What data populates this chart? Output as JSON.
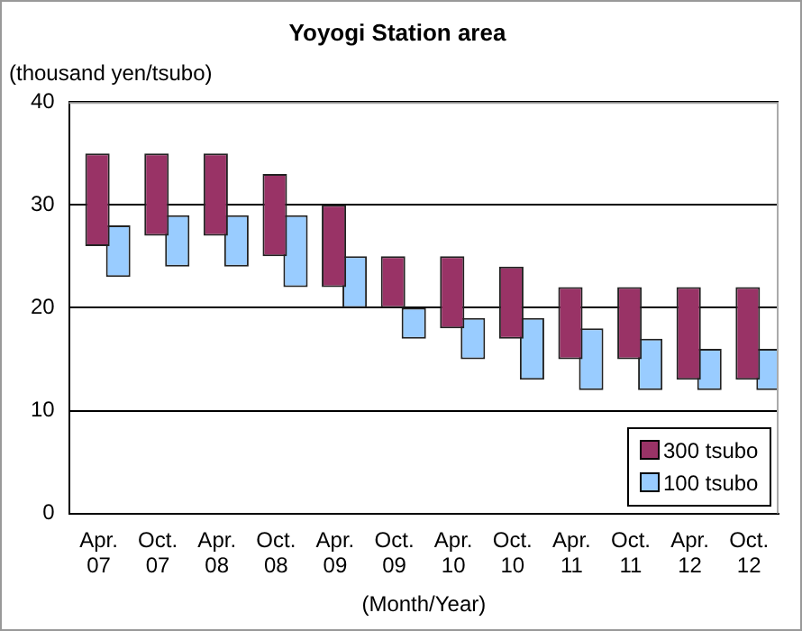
{
  "chart_data": {
    "type": "bar",
    "title": "Yoyogi Station area",
    "ylabel": "(thousand yen/tsubo)",
    "xlabel": "(Month/Year)",
    "categories": [
      "Apr. 07",
      "Oct. 07",
      "Apr. 08",
      "Oct. 08",
      "Apr. 09",
      "Oct. 09",
      "Apr. 10",
      "Oct. 10",
      "Apr. 11",
      "Oct. 11",
      "Apr. 12",
      "Oct. 12"
    ],
    "series": [
      {
        "name": "300 tsubo",
        "color": "#993366",
        "base": [
          26,
          27,
          27,
          25,
          22,
          20,
          18,
          17,
          15,
          15,
          13,
          13
        ],
        "values": [
          9,
          8,
          8,
          8,
          8,
          5,
          7,
          7,
          7,
          7,
          9,
          9
        ]
      },
      {
        "name": "100 tsubo",
        "color": "#99ccff",
        "base": [
          23,
          24,
          24,
          22,
          20,
          17,
          15,
          13,
          12,
          12,
          12,
          12
        ],
        "values": [
          5,
          5,
          5,
          7,
          5,
          3,
          4,
          6,
          6,
          5,
          4,
          4
        ]
      }
    ],
    "ylim": [
      0,
      40
    ],
    "yticks": [
      0,
      10,
      20,
      30,
      40
    ],
    "grid": "y",
    "legend": "bottom right"
  }
}
